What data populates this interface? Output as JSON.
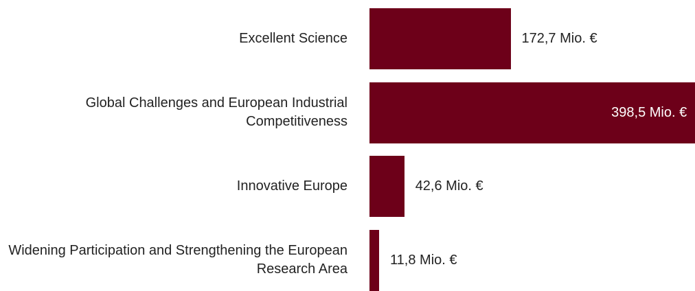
{
  "chart_data": {
    "type": "bar",
    "orientation": "horizontal",
    "categories": [
      "Excellent Science",
      "Global Challenges and European Industrial Competitiveness",
      "Innovative Europe",
      "Widening Participation and Strengthening the European Research Area"
    ],
    "values": [
      172.7,
      398.5,
      42.6,
      11.8
    ],
    "value_labels": [
      "172,7 Mio. €",
      "398,5 Mio. €",
      "42,6 Mio. €",
      "11,8 Mio. €"
    ],
    "color": "#6d0019",
    "xlim": [
      0,
      400
    ]
  }
}
